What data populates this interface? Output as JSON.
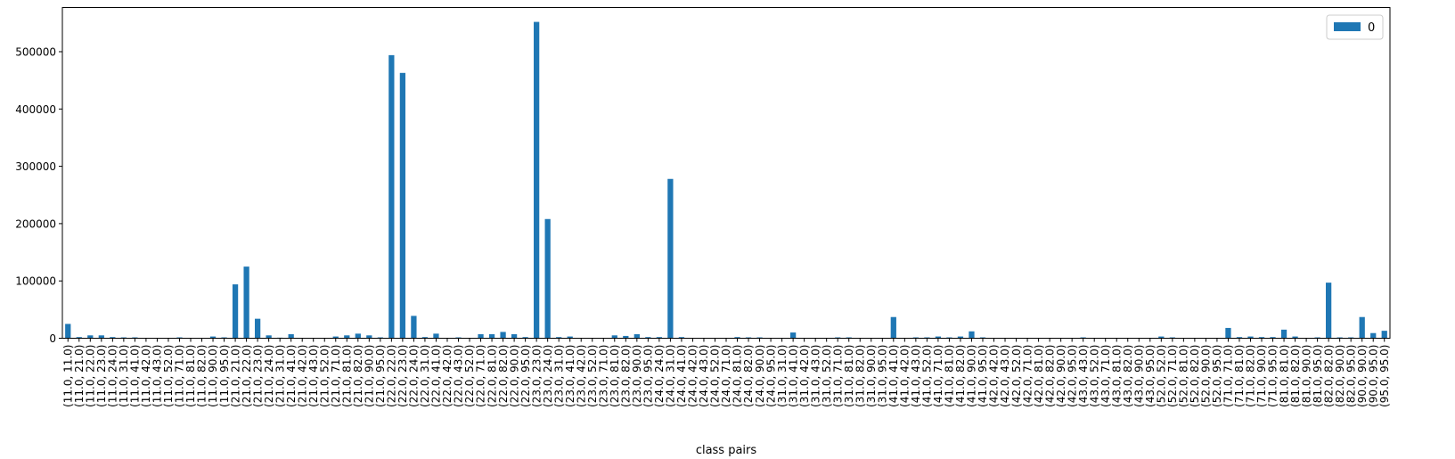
{
  "chart_data": {
    "type": "bar",
    "title": "",
    "xlabel": "class pairs",
    "ylabel": "",
    "ylim": [
      0,
      577000
    ],
    "yticks": [
      0,
      100000,
      200000,
      300000,
      400000,
      500000
    ],
    "ytick_labels": [
      "0",
      "100000",
      "200000",
      "300000",
      "400000",
      "500000"
    ],
    "grid": false,
    "legend_position": "top-right",
    "categories": [
      "(11.0, 11.0)",
      "(11.0, 21.0)",
      "(11.0, 22.0)",
      "(11.0, 23.0)",
      "(11.0, 24.0)",
      "(11.0, 31.0)",
      "(11.0, 41.0)",
      "(11.0, 42.0)",
      "(11.0, 43.0)",
      "(11.0, 52.0)",
      "(11.0, 71.0)",
      "(11.0, 81.0)",
      "(11.0, 82.0)",
      "(11.0, 90.0)",
      "(11.0, 95.0)",
      "(21.0, 21.0)",
      "(21.0, 22.0)",
      "(21.0, 23.0)",
      "(21.0, 24.0)",
      "(21.0, 31.0)",
      "(21.0, 41.0)",
      "(21.0, 42.0)",
      "(21.0, 43.0)",
      "(21.0, 52.0)",
      "(21.0, 71.0)",
      "(21.0, 81.0)",
      "(21.0, 82.0)",
      "(21.0, 90.0)",
      "(21.0, 95.0)",
      "(22.0, 22.0)",
      "(22.0, 23.0)",
      "(22.0, 24.0)",
      "(22.0, 31.0)",
      "(22.0, 41.0)",
      "(22.0, 42.0)",
      "(22.0, 43.0)",
      "(22.0, 52.0)",
      "(22.0, 71.0)",
      "(22.0, 81.0)",
      "(22.0, 82.0)",
      "(22.0, 90.0)",
      "(22.0, 95.0)",
      "(23.0, 23.0)",
      "(23.0, 24.0)",
      "(23.0, 31.0)",
      "(23.0, 41.0)",
      "(23.0, 42.0)",
      "(23.0, 52.0)",
      "(23.0, 71.0)",
      "(23.0, 81.0)",
      "(23.0, 82.0)",
      "(23.0, 90.0)",
      "(23.0, 95.0)",
      "(24.0, 24.0)",
      "(24.0, 31.0)",
      "(24.0, 41.0)",
      "(24.0, 42.0)",
      "(24.0, 43.0)",
      "(24.0, 52.0)",
      "(24.0, 71.0)",
      "(24.0, 81.0)",
      "(24.0, 82.0)",
      "(24.0, 90.0)",
      "(24.0, 95.0)",
      "(31.0, 31.0)",
      "(31.0, 41.0)",
      "(31.0, 42.0)",
      "(31.0, 43.0)",
      "(31.0, 52.0)",
      "(31.0, 71.0)",
      "(31.0, 81.0)",
      "(31.0, 82.0)",
      "(31.0, 90.0)",
      "(31.0, 95.0)",
      "(41.0, 41.0)",
      "(41.0, 42.0)",
      "(41.0, 43.0)",
      "(41.0, 52.0)",
      "(41.0, 71.0)",
      "(41.0, 81.0)",
      "(41.0, 82.0)",
      "(41.0, 90.0)",
      "(41.0, 95.0)",
      "(42.0, 42.0)",
      "(42.0, 43.0)",
      "(42.0, 52.0)",
      "(42.0, 71.0)",
      "(42.0, 81.0)",
      "(42.0, 82.0)",
      "(42.0, 90.0)",
      "(42.0, 95.0)",
      "(43.0, 43.0)",
      "(43.0, 52.0)",
      "(43.0, 71.0)",
      "(43.0, 81.0)",
      "(43.0, 82.0)",
      "(43.0, 90.0)",
      "(43.0, 95.0)",
      "(52.0, 52.0)",
      "(52.0, 71.0)",
      "(52.0, 81.0)",
      "(52.0, 82.0)",
      "(52.0, 90.0)",
      "(52.0, 95.0)",
      "(71.0, 71.0)",
      "(71.0, 81.0)",
      "(71.0, 82.0)",
      "(71.0, 90.0)",
      "(71.0, 95.0)",
      "(81.0, 81.0)",
      "(81.0, 82.0)",
      "(81.0, 90.0)",
      "(81.0, 95.0)",
      "(82.0, 82.0)",
      "(82.0, 90.0)",
      "(82.0, 95.0)",
      "(90.0, 90.0)",
      "(90.0, 95.0)",
      "(95.0, 95.0)"
    ],
    "series": [
      {
        "name": "0",
        "color": "#1f77b4",
        "values": [
          25000,
          2000,
          5000,
          5000,
          2000,
          1500,
          1500,
          300,
          200,
          200,
          1500,
          200,
          300,
          3000,
          1500,
          94000,
          125000,
          34000,
          5000,
          1000,
          7000,
          300,
          300,
          300,
          3000,
          5000,
          8000,
          5000,
          1500,
          494000,
          463000,
          39000,
          2000,
          8000,
          500,
          1500,
          500,
          7000,
          7000,
          11000,
          7000,
          2000,
          552000,
          208000,
          2000,
          3000,
          500,
          200,
          300,
          5000,
          4000,
          7000,
          2000,
          2000,
          278000,
          2000,
          500,
          300,
          300,
          300,
          2000,
          1500,
          1500,
          500,
          300,
          10000,
          500,
          300,
          200,
          1500,
          1500,
          300,
          300,
          300,
          37000,
          500,
          1500,
          1500,
          3000,
          1500,
          3000,
          12000,
          1500,
          300,
          300,
          300,
          300,
          300,
          300,
          300,
          300,
          1500,
          300,
          300,
          300,
          300,
          300,
          300,
          3000,
          1500,
          300,
          300,
          300,
          300,
          18000,
          2000,
          3000,
          2000,
          2000,
          15000,
          3000,
          300,
          1500,
          97000,
          1500,
          1500,
          37000,
          9000,
          13000
        ]
      }
    ]
  }
}
